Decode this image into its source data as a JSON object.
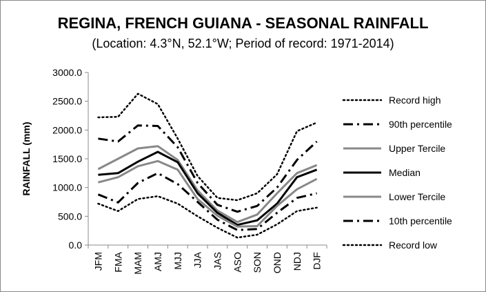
{
  "chart_data": {
    "type": "line",
    "title": "REGINA, FRENCH GUIANA - SEASONAL RAINFALL",
    "subtitle": "(Location: 4.3°N, 52.1°W; Period of record: 1971-2014)",
    "ylabel": "RAINFALL (mm)",
    "xlabel": "",
    "ylim": [
      0,
      3000
    ],
    "ytick_values": [
      0,
      500,
      1000,
      1500,
      2000,
      2500,
      3000
    ],
    "ytick_labels": [
      "0.0",
      "500.0",
      "1000.0",
      "1500.0",
      "2000.0",
      "2500.0",
      "3000.0"
    ],
    "grid": false,
    "legend_position": "right",
    "categories": [
      "JFM",
      "FMA",
      "MAM",
      "AMJ",
      "MJJ",
      "JJA",
      "JAS",
      "ASO",
      "SON",
      "OND",
      "NDJ",
      "DJF"
    ],
    "series": [
      {
        "name": "Record high",
        "style": "dotted",
        "color": "#000000",
        "values": [
          2220,
          2230,
          2630,
          2450,
          1850,
          1200,
          820,
          780,
          900,
          1230,
          1980,
          2130
        ]
      },
      {
        "name": "90th percentile",
        "style": "dashdot",
        "color": "#000000",
        "values": [
          1850,
          1800,
          2080,
          2070,
          1700,
          1080,
          700,
          580,
          680,
          1000,
          1480,
          1800
        ]
      },
      {
        "name": "Upper Tercile",
        "style": "solid",
        "color": "#888888",
        "values": [
          1320,
          1500,
          1680,
          1720,
          1480,
          950,
          600,
          400,
          530,
          900,
          1250,
          1390
        ]
      },
      {
        "name": "Median",
        "style": "solid",
        "color": "#000000",
        "values": [
          1220,
          1250,
          1450,
          1620,
          1440,
          900,
          560,
          350,
          430,
          720,
          1180,
          1310
        ]
      },
      {
        "name": "Lower Tercile",
        "style": "solid",
        "color": "#888888",
        "values": [
          1090,
          1180,
          1370,
          1460,
          1310,
          800,
          510,
          320,
          330,
          680,
          970,
          1150
        ]
      },
      {
        "name": "10th percentile",
        "style": "dashdot",
        "color": "#000000",
        "values": [
          880,
          740,
          1080,
          1250,
          1060,
          750,
          440,
          260,
          280,
          560,
          820,
          900
        ]
      },
      {
        "name": "Record low",
        "style": "dotted",
        "color": "#000000",
        "values": [
          720,
          590,
          800,
          850,
          720,
          500,
          300,
          130,
          180,
          360,
          590,
          650
        ]
      }
    ]
  }
}
